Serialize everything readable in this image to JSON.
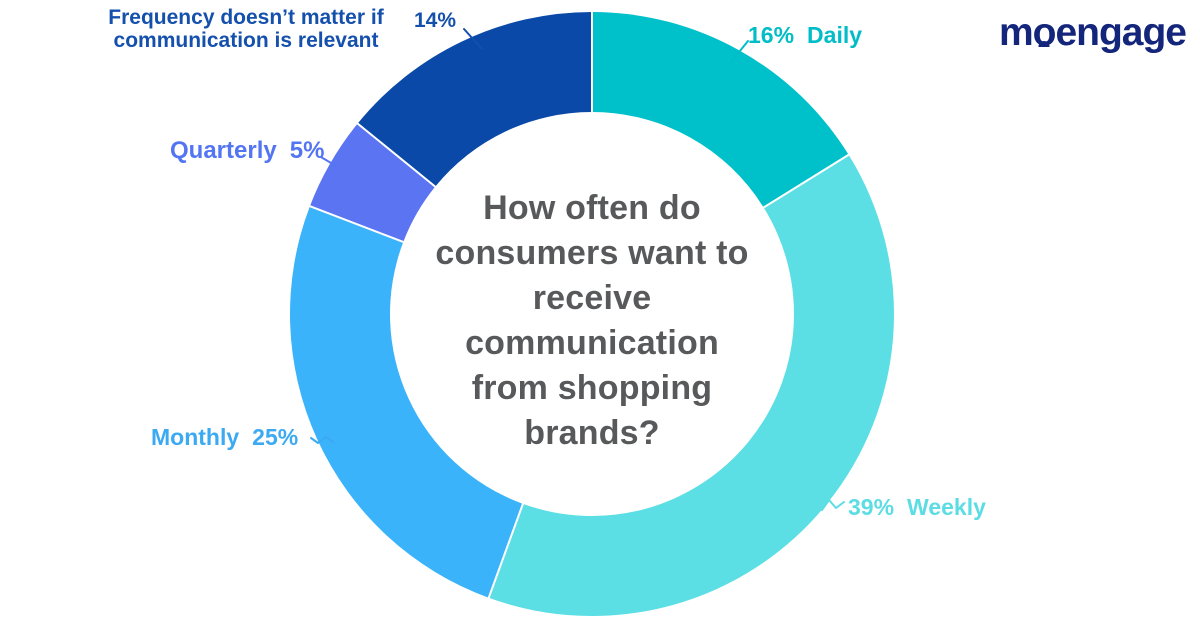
{
  "brand": {
    "logo_text": "moengage",
    "logo_color": "#14267B"
  },
  "center": {
    "color": "#58595B",
    "lines": [
      "How often do",
      "consumers want to",
      "receive",
      "communication",
      "from shopping",
      "brands?"
    ]
  },
  "chart_data": {
    "type": "donut",
    "title": "How often do consumers want to receive communication from shopping brands?",
    "value_unit": "%",
    "direction": "clockwise",
    "start_angle_deg": 0,
    "separator_color": "#ffffff",
    "segments": [
      {
        "label": "Daily",
        "value": 16,
        "color": "#00C0CA",
        "label_color": "#00BDC7"
      },
      {
        "label": "Weekly",
        "value": 39,
        "color": "#5BDFE4",
        "label_color": "#5CDDE4"
      },
      {
        "label": "Monthly",
        "value": 25,
        "color": "#3AB3FA",
        "label_color": "#3BAAF3"
      },
      {
        "label": "Quarterly",
        "value": 5,
        "color": "#5B74F2",
        "label_color": "#5375F2"
      },
      {
        "label": "Frequency doesn’t matter if communication is relevant",
        "value": 14,
        "color": "#0A49A8",
        "label_color": "#1450AC"
      }
    ]
  },
  "callouts": {
    "daily": {
      "pct": "16%",
      "name": "Daily"
    },
    "weekly": {
      "pct": "39%",
      "name": "Weekly"
    },
    "monthly": {
      "name": "Monthly",
      "pct": "25%"
    },
    "quarterly": {
      "name": "Quarterly",
      "pct": "5%"
    },
    "frequency": {
      "line1": "Frequency doesn’t matter if",
      "line2": "communication is relevant",
      "pct": "14%"
    }
  }
}
